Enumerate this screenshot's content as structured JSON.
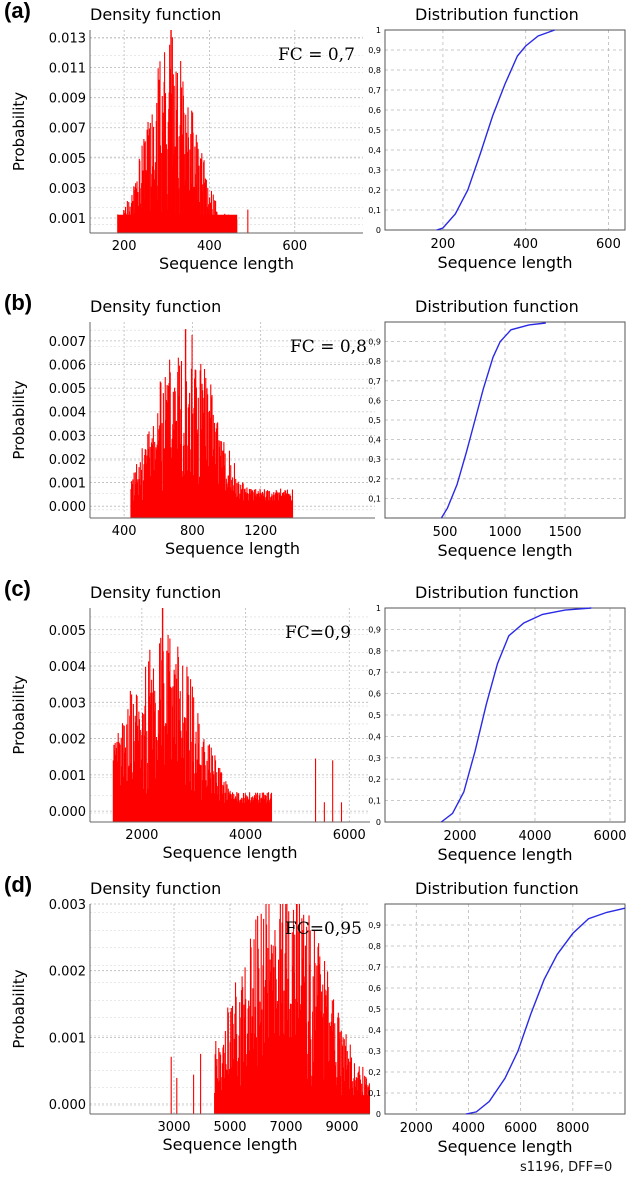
{
  "footer": "s1196, DFF=0",
  "colors": {
    "density": "#ff0000",
    "distribution": "#2a2ae6",
    "grid": "#b9b9b9"
  },
  "chart_data": [
    {
      "type": "bar",
      "panel": "(a)",
      "chart": "density",
      "title": "Density function",
      "xlabel": "Sequence length",
      "ylabel": "Probability",
      "annotation": "FC = 0,7",
      "xlim": [
        120,
        760
      ],
      "ylim": [
        0,
        0.0135
      ],
      "xticks": [
        200,
        400,
        600
      ],
      "xtick_labels": [
        "200",
        "400",
        "600"
      ],
      "yticks": [
        0.001,
        0.003,
        0.005,
        0.007,
        0.009,
        0.011,
        0.013
      ],
      "ytick_labels": [
        "0.001",
        "0.003",
        "0.005",
        "0.007",
        "0.009",
        "0.011",
        "0.013"
      ],
      "grid": true,
      "range": [
        185,
        465
      ],
      "center": 310,
      "sigma": 55,
      "peak": 0.0105,
      "spike": [
        0.0135
      ],
      "outliers": [
        490
      ],
      "seed": 11
    },
    {
      "type": "line",
      "panel": "(a)",
      "chart": "distribution",
      "title": "Distribution function",
      "xlabel": "Sequence length",
      "xlim": [
        60,
        640
      ],
      "ylim": [
        0,
        1
      ],
      "xticks": [
        200,
        400,
        600
      ],
      "xtick_labels": [
        "200",
        "400",
        "600"
      ],
      "yticks": [
        0,
        0.1,
        0.2,
        0.3,
        0.4,
        0.5,
        0.6,
        0.7,
        0.8,
        0.9,
        1
      ],
      "ytick_labels": [
        "0",
        "0,1",
        "0,2",
        "0,3",
        "0,4",
        "0,5",
        "0,6",
        "0,7",
        "0,8",
        "0,9",
        "1"
      ],
      "grid": true,
      "x": [
        185,
        200,
        230,
        260,
        290,
        320,
        350,
        380,
        400,
        430,
        470
      ],
      "y": [
        0,
        0.01,
        0.08,
        0.2,
        0.38,
        0.57,
        0.73,
        0.87,
        0.92,
        0.97,
        1.0
      ]
    },
    {
      "type": "bar",
      "panel": "(b)",
      "chart": "density",
      "title": "Density function",
      "xlabel": "Sequence length",
      "ylabel": "Probability",
      "annotation": "FC = 0,8",
      "xlim": [
        200,
        1870
      ],
      "ylim": [
        -0.0005,
        0.0078
      ],
      "xticks": [
        400,
        800,
        1200
      ],
      "xtick_labels": [
        "400",
        "800",
        "1200"
      ],
      "yticks": [
        0.0,
        0.001,
        0.002,
        0.003,
        0.004,
        0.005,
        0.006,
        0.007
      ],
      "ytick_labels": [
        "0.000",
        "0.001",
        "0.002",
        "0.003",
        "0.004",
        "0.005",
        "0.006",
        "0.007"
      ],
      "grid": true,
      "range": [
        440,
        1390
      ],
      "center": 760,
      "sigma": 170,
      "peak": 0.0062,
      "spike": [
        0.0075
      ],
      "outliers": [],
      "seed": 23
    },
    {
      "type": "line",
      "panel": "(b)",
      "chart": "distribution",
      "title": "Distribution function",
      "xlabel": "Sequence length",
      "xlim": [
        0,
        2000
      ],
      "ylim": [
        0,
        1
      ],
      "xticks": [
        500,
        1000,
        1500
      ],
      "xtick_labels": [
        "500",
        "1000",
        "1500"
      ],
      "yticks": [
        0.1,
        0.2,
        0.3,
        0.4,
        0.5,
        0.6,
        0.7,
        0.8,
        0.9
      ],
      "ytick_labels": [
        "0,1",
        "0,2",
        "0,3",
        "0,4",
        "0,5",
        "0,6",
        "0,7",
        "0,8",
        "0,9"
      ],
      "grid": true,
      "x": [
        470,
        520,
        600,
        680,
        750,
        820,
        900,
        960,
        1050,
        1200,
        1340
      ],
      "y": [
        0,
        0.05,
        0.17,
        0.34,
        0.5,
        0.66,
        0.82,
        0.9,
        0.96,
        0.985,
        0.995
      ]
    },
    {
      "type": "bar",
      "panel": "(c)",
      "chart": "density",
      "title": "Density function",
      "xlabel": "Sequence length",
      "ylabel": "Probability",
      "annotation": "FC=0,9",
      "xlim": [
        1000,
        6400
      ],
      "ylim": [
        -0.0003,
        0.0056
      ],
      "xticks": [
        2000,
        4000,
        6000
      ],
      "xtick_labels": [
        "2000",
        "4000",
        "6000"
      ],
      "yticks": [
        0.0,
        0.001,
        0.002,
        0.003,
        0.004,
        0.005
      ],
      "ytick_labels": [
        "0.000",
        "0.001",
        "0.002",
        "0.003",
        "0.004",
        "0.005"
      ],
      "grid": true,
      "range": [
        1450,
        4500
      ],
      "center": 2400,
      "sigma": 650,
      "peak": 0.0042,
      "spike": [
        0.0056
      ],
      "outliers": [
        5350,
        5520,
        5680,
        5850
      ],
      "seed": 37
    },
    {
      "type": "line",
      "panel": "(c)",
      "chart": "distribution",
      "title": "Distribution function",
      "xlabel": "Sequence length",
      "xlim": [
        0,
        6400
      ],
      "ylim": [
        0,
        1
      ],
      "xticks": [
        2000,
        4000,
        6000
      ],
      "xtick_labels": [
        "2000",
        "4000",
        "6000"
      ],
      "yticks": [
        0,
        0.1,
        0.2,
        0.3,
        0.4,
        0.5,
        0.6,
        0.7,
        0.8,
        0.9,
        1
      ],
      "ytick_labels": [
        "0",
        "0,1",
        "0,2",
        "0,3",
        "0,4",
        "0,5",
        "0,6",
        "0,7",
        "0,8",
        "0,9",
        "1"
      ],
      "grid": true,
      "x": [
        1500,
        1800,
        2100,
        2400,
        2700,
        3000,
        3300,
        3700,
        4200,
        4800,
        5500
      ],
      "y": [
        0,
        0.04,
        0.14,
        0.33,
        0.55,
        0.74,
        0.87,
        0.93,
        0.97,
        0.99,
        1.0
      ]
    },
    {
      "type": "bar",
      "panel": "(d)",
      "chart": "density",
      "title": "Density function",
      "xlabel": "Sequence length",
      "ylabel": "Probability",
      "annotation": "FC=0,95",
      "xlim": [
        0,
        10000
      ],
      "ylim": [
        -0.00015,
        0.003
      ],
      "xticks": [
        3000,
        5000,
        7000,
        9000
      ],
      "xtick_labels": [
        "3000",
        "5000",
        "7000",
        "9000"
      ],
      "yticks": [
        0.0,
        0.001,
        0.002,
        0.003
      ],
      "ytick_labels": [
        "0.000",
        "0.001",
        "0.002",
        "0.003"
      ],
      "grid": true,
      "range": [
        4450,
        10000
      ],
      "center": 6900,
      "sigma": 1500,
      "peak": 0.0028,
      "spike": [],
      "outliers": [
        2900,
        3100,
        3700,
        3950
      ],
      "seed": 53
    },
    {
      "type": "line",
      "panel": "(d)",
      "chart": "distribution",
      "title": "Distribution function",
      "xlabel": "Sequence length",
      "xlim": [
        800,
        10000
      ],
      "ylim": [
        0,
        1
      ],
      "xticks": [
        2000,
        4000,
        6000,
        8000
      ],
      "xtick_labels": [
        "2000",
        "4000",
        "6000",
        "8000"
      ],
      "yticks": [
        0,
        0.1,
        0.2,
        0.3,
        0.4,
        0.5,
        0.6,
        0.7,
        0.8,
        0.9
      ],
      "ytick_labels": [
        "0",
        "0,1",
        "0,2",
        "0,3",
        "0,4",
        "0,5",
        "0,6",
        "0,7",
        "0,8",
        "0,9"
      ],
      "grid": true,
      "x": [
        3900,
        4300,
        4800,
        5400,
        5900,
        6400,
        6900,
        7400,
        8000,
        8600,
        9300,
        10000
      ],
      "y": [
        0,
        0.01,
        0.06,
        0.17,
        0.3,
        0.48,
        0.64,
        0.76,
        0.86,
        0.93,
        0.96,
        0.98
      ]
    }
  ]
}
